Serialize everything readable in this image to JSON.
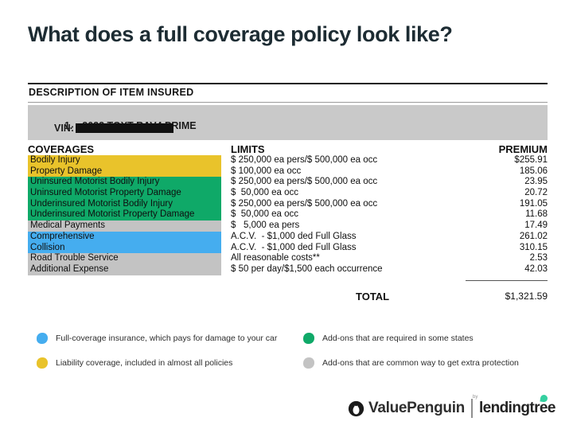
{
  "page": {
    "title": "What does a full coverage policy look like?"
  },
  "colors": {
    "liability": "#E9C32B",
    "state_addon": "#0FA968",
    "extra_addon": "#C3C3C3",
    "full_coverage": "#45ADEF"
  },
  "policy_table": {
    "description_header": "DESCRIPTION OF ITEM INSURED",
    "item_number": "1.",
    "item_name": "2022 TOYT RAV4 PRIME",
    "vin_label": "VIN:",
    "vin_redacted_icon": "redaction-bar",
    "columns": {
      "coverages": "COVERAGES",
      "limits": "LIMITS",
      "premium": "PREMIUM"
    },
    "rows": [
      {
        "coverage": "Bodily Injury",
        "limit": "$ 250,000 ea pers/$ 500,000 ea occ",
        "premium": "$255.91",
        "category": "liability"
      },
      {
        "coverage": "Property Damage",
        "limit": "$ 100,000 ea occ",
        "premium": "185.06",
        "category": "liability"
      },
      {
        "coverage": "Uninsured Motorist Bodily Injury",
        "limit": "$ 250,000 ea pers/$ 500,000 ea occ",
        "premium": "23.95",
        "category": "state_addon"
      },
      {
        "coverage": "Uninsured Motorist Property Damage",
        "limit": "$  50,000 ea occ",
        "premium": "20.72",
        "category": "state_addon"
      },
      {
        "coverage": "Underinsured Motorist Bodily Injury",
        "limit": "$ 250,000 ea pers/$ 500,000 ea occ",
        "premium": "191.05",
        "category": "state_addon"
      },
      {
        "coverage": "Underinsured Motorist Property Damage",
        "limit": "$  50,000 ea occ",
        "premium": "11.68",
        "category": "state_addon"
      },
      {
        "coverage": "Medical Payments",
        "limit": "$   5,000 ea pers",
        "premium": "17.49",
        "category": "extra_addon"
      },
      {
        "coverage": "Comprehensive",
        "limit": "A.C.V.  - $1,000 ded Full Glass",
        "premium": "261.02",
        "category": "full_coverage"
      },
      {
        "coverage": "Collision",
        "limit": "A.C.V.  - $1,000 ded Full Glass",
        "premium": "310.15",
        "category": "full_coverage"
      },
      {
        "coverage": "Road Trouble Service",
        "limit": "All reasonable costs**",
        "premium": "2.53",
        "category": "extra_addon"
      },
      {
        "coverage": "Additional Expense",
        "limit": "$ 50 per day/$1,500 each occurrence",
        "premium": "42.03",
        "category": "extra_addon"
      }
    ],
    "total_label": "TOTAL",
    "total_value": "$1,321.59"
  },
  "legend": [
    {
      "category": "full_coverage",
      "label": "Full-coverage insurance, which pays for damage to your car"
    },
    {
      "category": "liability",
      "label": "Liability coverage, included in almost all policies"
    },
    {
      "category": "state_addon",
      "label": "Add-ons that are required in some states"
    },
    {
      "category": "extra_addon",
      "label": "Add-ons that are common way to get extra protection"
    }
  ],
  "footer": {
    "penguin_icon": "penguin-logo",
    "brand_left": "ValuePenguin",
    "by_label": "by",
    "brand_right": "lendingtree",
    "leaf_icon": "leaf-logo"
  }
}
